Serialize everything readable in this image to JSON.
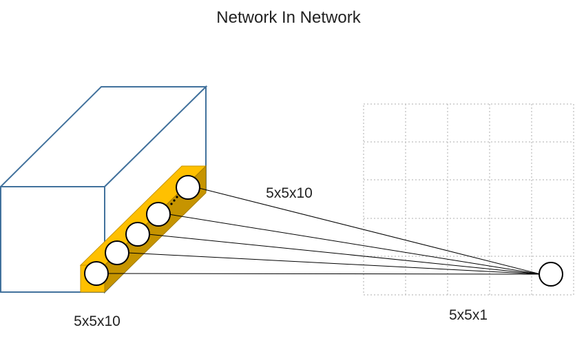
{
  "title": "Network In Network",
  "labels": {
    "input_volume": "5x5x10",
    "connection": "5x5x10",
    "output_map": "5x5x1"
  },
  "colors": {
    "box_stroke": "#41719c",
    "slice_fill": "#ffc000",
    "slice_dark": "#c69400",
    "grid_stroke": "#c8c8c8",
    "line": "#000000"
  },
  "icons": {
    "neuron": "circle",
    "ellipsis": "dots"
  }
}
